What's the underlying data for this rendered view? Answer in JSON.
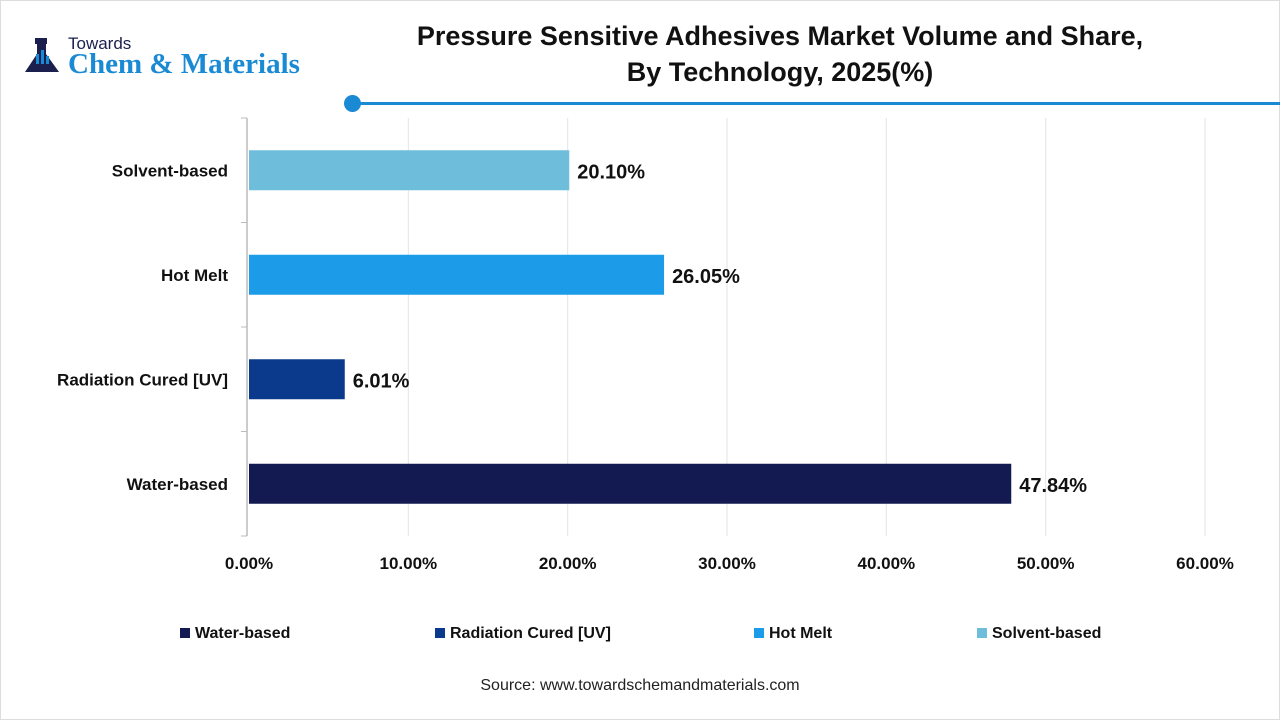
{
  "logo": {
    "line1": "Towards",
    "line2": "Chem & Materials"
  },
  "title_line1": "Pressure Sensitive Adhesives Market Volume and Share,",
  "title_line2": "By Technology, 2025(%)",
  "source": "Source: www.towardschemandmaterials.com",
  "chart_data": {
    "type": "bar",
    "orientation": "horizontal",
    "categories": [
      "Solvent-based",
      "Hot Melt",
      "Radiation Cured [UV]",
      "Water-based"
    ],
    "values": [
      20.1,
      26.05,
      6.01,
      47.84
    ],
    "data_labels": [
      "20.10%",
      "26.05%",
      "6.01%",
      "47.84%"
    ],
    "colors": [
      "#6dbddb",
      "#1c9be8",
      "#0b3a8c",
      "#131a52"
    ],
    "xlim": [
      0,
      60
    ],
    "xticks": [
      "0.00%",
      "10.00%",
      "20.00%",
      "30.00%",
      "40.00%",
      "50.00%",
      "60.00%"
    ],
    "grid": true,
    "legend_position": "bottom",
    "legend": [
      {
        "label": "Water-based",
        "color": "#131a52"
      },
      {
        "label": "Radiation Cured [UV]",
        "color": "#0b3a8c"
      },
      {
        "label": "Hot Melt",
        "color": "#1c9be8"
      },
      {
        "label": "Solvent-based",
        "color": "#6dbddb"
      }
    ]
  }
}
